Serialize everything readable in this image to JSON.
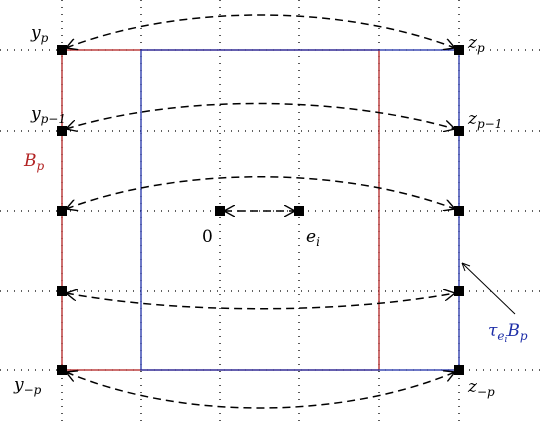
{
  "diagram": {
    "labels": {
      "y_p": {
        "base": "y",
        "sub": "p"
      },
      "y_p_minus_1": {
        "base": "y",
        "sub": "p−1"
      },
      "y_minus_p": {
        "base": "y",
        "sub": "−p"
      },
      "z_p": {
        "base": "z",
        "sub": "p"
      },
      "z_p_minus_1": {
        "base": "z",
        "sub": "p−1"
      },
      "z_minus_p": {
        "base": "z",
        "sub": "−p"
      },
      "B_p": {
        "base": "B",
        "sub": "p"
      },
      "tau_B_p": {
        "base": "τ",
        "sub": "e",
        "subsub": "i",
        "tail": "B",
        "tailsub": "p"
      },
      "origin": "0",
      "e_i": {
        "base": "e",
        "sub": "i"
      }
    },
    "colors": {
      "box_B_p": "#b22222",
      "box_tau_B_p": "#1f2fa8",
      "grid": "#000000",
      "arrows": "#000000"
    }
  }
}
